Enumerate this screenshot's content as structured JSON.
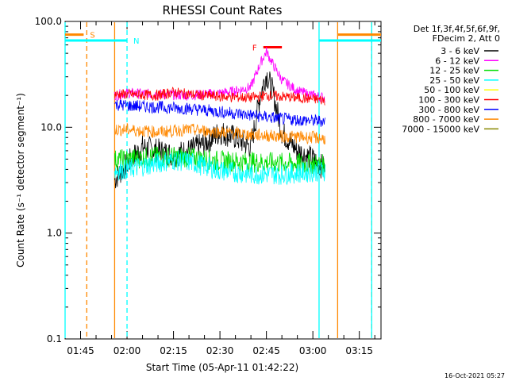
{
  "chart_data": {
    "type": "line",
    "title": "RHESSI Count Rates",
    "xlabel": "Start Time (05-Apr-11 01:42:22)",
    "ylabel": "Count Rate (s⁻¹ detector segment⁻¹)",
    "y_scale": "log",
    "ylim": [
      0.1,
      100
    ],
    "xlim": [
      "01:40",
      "03:22"
    ],
    "x_ticks": [
      "01:45",
      "02:00",
      "02:15",
      "02:30",
      "02:45",
      "03:00",
      "03:15"
    ],
    "y_ticks": [
      "0.1",
      "1.0",
      "10.0",
      "100.0"
    ],
    "legend_position": "right",
    "legend_header": [
      "Det 1f,3f,4f,5f,6f,9f,",
      "FDecim 2, Att 0"
    ],
    "timestamp": "16-Oct-2021 05:27",
    "series": [
      {
        "name": "3 - 6 keV",
        "color": "#000000",
        "x": [
          "01:56",
          "02:00",
          "02:05",
          "02:10",
          "02:15",
          "02:20",
          "02:25",
          "02:30",
          "02:35",
          "02:40",
          "02:43",
          "02:45",
          "02:47",
          "02:50",
          "02:55",
          "03:00",
          "03:04"
        ],
        "values": [
          3.2,
          4.5,
          6.5,
          6.0,
          5.5,
          6.0,
          7.0,
          9.0,
          8.0,
          6.5,
          20.0,
          32.0,
          22.0,
          9.0,
          6.0,
          5.0,
          4.0
        ]
      },
      {
        "name": "6 - 12 keV",
        "color": "#ff00ff",
        "x": [
          "01:56",
          "02:00",
          "02:10",
          "02:20",
          "02:30",
          "02:35",
          "02:40",
          "02:43",
          "02:45",
          "02:47",
          "02:50",
          "02:55",
          "03:00",
          "03:04"
        ],
        "values": [
          20.0,
          21.0,
          20.5,
          20.0,
          21.0,
          22.0,
          24.0,
          40.0,
          52.0,
          40.0,
          28.0,
          22.0,
          20.0,
          19.0
        ]
      },
      {
        "name": "12 - 25 keV",
        "color": "#00dd00",
        "x": [
          "01:56",
          "02:00",
          "02:10",
          "02:20",
          "02:30",
          "02:40",
          "02:50",
          "03:00",
          "03:04"
        ],
        "values": [
          4.9,
          5.0,
          5.3,
          5.2,
          4.8,
          4.7,
          4.6,
          4.5,
          4.4
        ]
      },
      {
        "name": "25 - 50 keV",
        "color": "#00ffff",
        "x": [
          "01:56",
          "02:00",
          "02:05",
          "02:10",
          "02:15",
          "02:20",
          "02:25",
          "02:30",
          "02:40",
          "02:50",
          "03:00",
          "03:04"
        ],
        "values": [
          3.9,
          4.0,
          4.3,
          4.6,
          4.9,
          4.7,
          4.3,
          3.9,
          3.6,
          3.6,
          3.8,
          3.9
        ]
      },
      {
        "name": "50 - 100 keV",
        "color": "#ffff00",
        "x": [],
        "values": []
      },
      {
        "name": "100 - 300 keV",
        "color": "#ff0000",
        "x": [
          "01:56",
          "02:00",
          "02:10",
          "02:15",
          "02:20",
          "02:30",
          "02:40",
          "02:45",
          "02:50",
          "03:00",
          "03:04"
        ],
        "values": [
          20.5,
          20.5,
          20.0,
          21.5,
          20.5,
          19.5,
          19.0,
          20.0,
          19.5,
          18.5,
          18.0
        ]
      },
      {
        "name": "300 - 800 keV",
        "color": "#0000ff",
        "x": [
          "01:56",
          "02:00",
          "02:10",
          "02:20",
          "02:30",
          "02:40",
          "02:50",
          "03:00",
          "03:04"
        ],
        "values": [
          16.5,
          16.0,
          15.5,
          15.0,
          14.0,
          13.0,
          12.0,
          11.5,
          11.5
        ]
      },
      {
        "name": "800 - 7000 keV",
        "color": "#ff8800",
        "x": [
          "01:56",
          "02:00",
          "02:10",
          "02:20",
          "02:30",
          "02:40",
          "02:50",
          "03:00",
          "03:04"
        ],
        "values": [
          9.5,
          9.5,
          9.0,
          9.5,
          9.0,
          8.5,
          8.2,
          8.0,
          7.8
        ]
      },
      {
        "name": "7000 - 15000 keV",
        "color": "#888800",
        "x": [],
        "values": []
      }
    ],
    "annotations": [
      {
        "label": "S",
        "color": "#ff8800",
        "x": "01:47",
        "y": 75,
        "x_start": "01:40",
        "x_end": "01:46"
      },
      {
        "label": "N",
        "color": "#00ffff",
        "x": "02:01",
        "y": 66,
        "x_start": "01:40",
        "x_end": "02:00"
      },
      {
        "label": "F",
        "color": "#ff0000",
        "x": "02:42",
        "y": 57,
        "x_start": "02:44",
        "x_end": "02:50"
      },
      {
        "label": "",
        "color": "#00ffff",
        "x_start": "03:02",
        "x_end": "03:22",
        "y": 66
      },
      {
        "label": "",
        "color": "#ff8800",
        "x_start": "03:08",
        "x_end": "03:22",
        "y": 75
      }
    ],
    "vertical_lines": [
      {
        "color": "#00ffff",
        "x": "01:40",
        "style": "solid"
      },
      {
        "color": "#ff8800",
        "x": "01:47",
        "style": "dashed"
      },
      {
        "color": "#ff8800",
        "x": "01:56",
        "style": "solid"
      },
      {
        "color": "#00ffff",
        "x": "02:00",
        "style": "dashed"
      },
      {
        "color": "#00ffff",
        "x": "03:02",
        "style": "solid"
      },
      {
        "color": "#ff8800",
        "x": "03:08",
        "style": "solid"
      },
      {
        "color": "#ff8800",
        "x": "03:19",
        "style": "dashed"
      },
      {
        "color": "#00ffff",
        "x": "03:19",
        "style": "solid"
      }
    ]
  }
}
